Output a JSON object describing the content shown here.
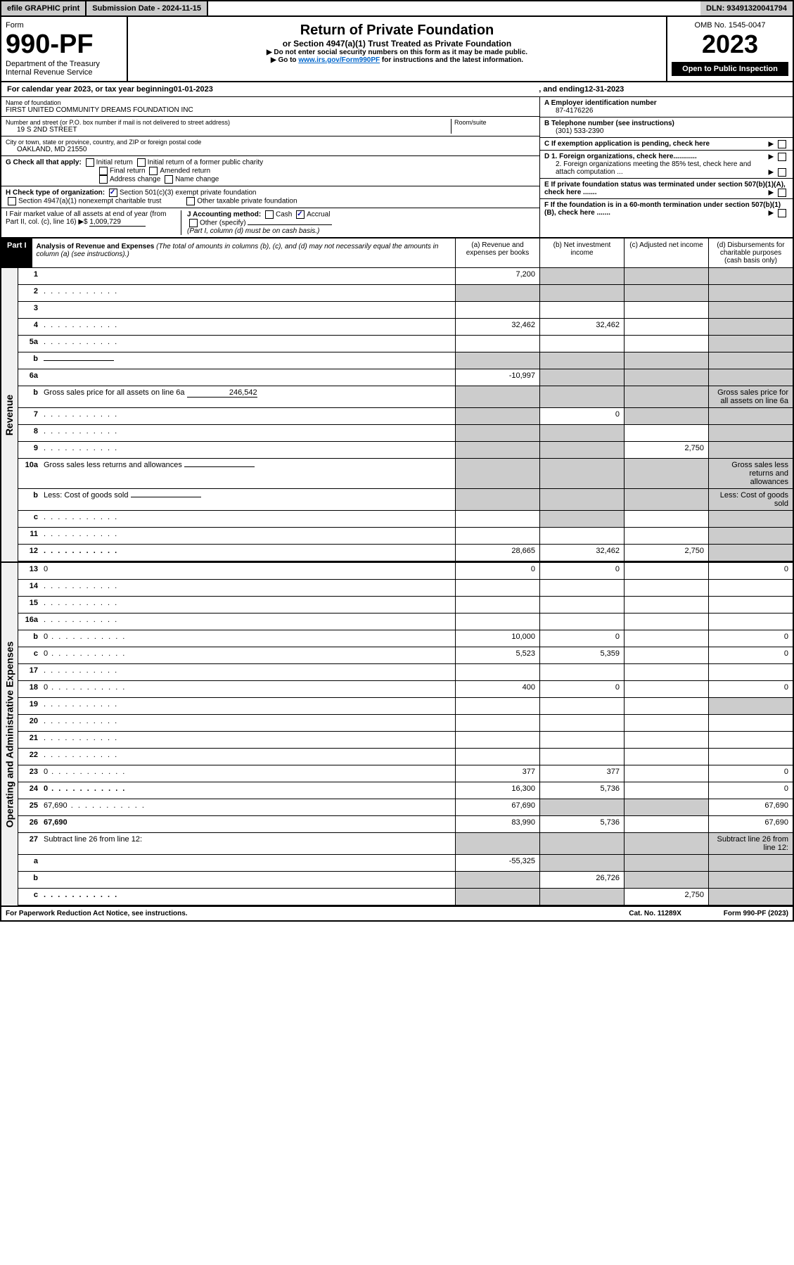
{
  "top": {
    "efile": "efile GRAPHIC print",
    "submission": "Submission Date - 2024-11-15",
    "dln": "DLN: 93491320041794"
  },
  "header": {
    "form_label": "Form",
    "form_num": "990-PF",
    "dept": "Department of the Treasury",
    "irs": "Internal Revenue Service",
    "omb": "OMB No. 1545-0047",
    "title": "Return of Private Foundation",
    "subtitle": "or Section 4947(a)(1) Trust Treated as Private Foundation",
    "note1": "▶ Do not enter social security numbers on this form as it may be made public.",
    "note2_pre": "▶ Go to ",
    "note2_link": "www.irs.gov/Form990PF",
    "note2_post": " for instructions and the latest information.",
    "year": "2023",
    "open": "Open to Public Inspection"
  },
  "calendar": {
    "text_pre": "For calendar year 2023, or tax year beginning ",
    "begin": "01-01-2023",
    "mid": ", and ending ",
    "end": "12-31-2023"
  },
  "foundation": {
    "name_label": "Name of foundation",
    "name": "FIRST UNITED COMMUNITY DREAMS FOUNDATION INC",
    "street_label": "Number and street (or P.O. box number if mail is not delivered to street address)",
    "street": "19 S 2ND STREET",
    "room_label": "Room/suite",
    "city_label": "City or town, state or province, country, and ZIP or foreign postal code",
    "city": "OAKLAND, MD  21550",
    "ein_label": "A Employer identification number",
    "ein": "87-4176226",
    "phone_label": "B Telephone number (see instructions)",
    "phone": "(301) 533-2390",
    "c_label": "C If exemption application is pending, check here",
    "d1": "D 1. Foreign organizations, check here............",
    "d2": "2. Foreign organizations meeting the 85% test, check here and attach computation ...",
    "e_label": "E If private foundation status was terminated under section 507(b)(1)(A), check here .......",
    "f_label": "F If the foundation is in a 60-month termination under section 507(b)(1)(B), check here .......",
    "g_label": "G Check all that apply:",
    "g_opts": [
      "Initial return",
      "Initial return of a former public charity",
      "Final return",
      "Amended return",
      "Address change",
      "Name change"
    ],
    "h_label": "H Check type of organization:",
    "h_501c3": "Section 501(c)(3) exempt private foundation",
    "h_4947": "Section 4947(a)(1) nonexempt charitable trust",
    "h_other": "Other taxable private foundation",
    "i_label": "I Fair market value of all assets at end of year (from Part II, col. (c), line 16) ▶$ ",
    "i_value": "1,009,729",
    "j_label": "J Accounting method:",
    "j_cash": "Cash",
    "j_accrual": "Accrual",
    "j_other": "Other (specify)",
    "j_note": "(Part I, column (d) must be on cash basis.)"
  },
  "part1": {
    "label": "Part I",
    "title": "Analysis of Revenue and Expenses",
    "title_note": "(The total of amounts in columns (b), (c), and (d) may not necessarily equal the amounts in column (a) (see instructions).)",
    "col_a": "(a) Revenue and expenses per books",
    "col_b": "(b) Net investment income",
    "col_c": "(c) Adjusted net income",
    "col_d": "(d) Disbursements for charitable purposes (cash basis only)"
  },
  "sections": {
    "revenue": "Revenue",
    "expenses": "Operating and Administrative Expenses"
  },
  "rows": [
    {
      "n": "1",
      "d": "",
      "a": "7,200",
      "b": "",
      "c": "",
      "sb": true,
      "sc": true,
      "sd": true
    },
    {
      "n": "2",
      "d": "",
      "a": "",
      "b": "",
      "c": "",
      "sa": true,
      "sb": true,
      "sc": true,
      "sd": true,
      "dots": true
    },
    {
      "n": "3",
      "d": "",
      "a": "",
      "b": "",
      "c": "",
      "sd": true
    },
    {
      "n": "4",
      "d": "",
      "a": "32,462",
      "b": "32,462",
      "c": "",
      "sd": true,
      "dots": true
    },
    {
      "n": "5a",
      "d": "",
      "a": "",
      "b": "",
      "c": "",
      "sd": true,
      "dots": true
    },
    {
      "n": "b",
      "d": "",
      "a": "",
      "b": "",
      "c": "",
      "sa": true,
      "sb": true,
      "sc": true,
      "sd": true,
      "inline": true
    },
    {
      "n": "6a",
      "d": "",
      "a": "-10,997",
      "b": "",
      "c": "",
      "sb": true,
      "sc": true,
      "sd": true
    },
    {
      "n": "b",
      "d": "Gross sales price for all assets on line 6a",
      "inline_val": "246,542",
      "sa": true,
      "sb": true,
      "sc": true,
      "sd": true
    },
    {
      "n": "7",
      "d": "",
      "a": "",
      "b": "0",
      "c": "",
      "sa": true,
      "sc": true,
      "sd": true,
      "dots": true
    },
    {
      "n": "8",
      "d": "",
      "a": "",
      "b": "",
      "c": "",
      "sa": true,
      "sb": true,
      "sd": true,
      "dots": true
    },
    {
      "n": "9",
      "d": "",
      "a": "",
      "b": "",
      "c": "2,750",
      "sa": true,
      "sb": true,
      "sd": true,
      "dots": true
    },
    {
      "n": "10a",
      "d": "Gross sales less returns and allowances",
      "sa": true,
      "sb": true,
      "sc": true,
      "sd": true,
      "inline": true
    },
    {
      "n": "b",
      "d": "Less: Cost of goods sold",
      "sa": true,
      "sb": true,
      "sc": true,
      "sd": true,
      "inline": true,
      "dots": true
    },
    {
      "n": "c",
      "d": "",
      "a": "",
      "b": "",
      "c": "",
      "sb": true,
      "sd": true,
      "dots": true
    },
    {
      "n": "11",
      "d": "",
      "a": "",
      "b": "",
      "c": "",
      "sd": true,
      "dots": true
    },
    {
      "n": "12",
      "d": "",
      "a": "28,665",
      "b": "32,462",
      "c": "2,750",
      "bold": true,
      "sd": true,
      "dots": true
    }
  ],
  "exp_rows": [
    {
      "n": "13",
      "d": "0",
      "a": "0",
      "b": "0",
      "c": ""
    },
    {
      "n": "14",
      "d": "",
      "a": "",
      "b": "",
      "c": "",
      "dots": true
    },
    {
      "n": "15",
      "d": "",
      "a": "",
      "b": "",
      "c": "",
      "dots": true
    },
    {
      "n": "16a",
      "d": "",
      "a": "",
      "b": "",
      "c": "",
      "dots": true
    },
    {
      "n": "b",
      "d": "0",
      "a": "10,000",
      "b": "0",
      "c": "",
      "dots": true
    },
    {
      "n": "c",
      "d": "0",
      "a": "5,523",
      "b": "5,359",
      "c": "",
      "dots": true
    },
    {
      "n": "17",
      "d": "",
      "a": "",
      "b": "",
      "c": "",
      "dots": true
    },
    {
      "n": "18",
      "d": "0",
      "a": "400",
      "b": "0",
      "c": "",
      "dots": true
    },
    {
      "n": "19",
      "d": "",
      "a": "",
      "b": "",
      "c": "",
      "sd": true,
      "dots": true
    },
    {
      "n": "20",
      "d": "",
      "a": "",
      "b": "",
      "c": "",
      "dots": true
    },
    {
      "n": "21",
      "d": "",
      "a": "",
      "b": "",
      "c": "",
      "dots": true
    },
    {
      "n": "22",
      "d": "",
      "a": "",
      "b": "",
      "c": "",
      "dots": true
    },
    {
      "n": "23",
      "d": "0",
      "a": "377",
      "b": "377",
      "c": "",
      "dots": true
    },
    {
      "n": "24",
      "d": "0",
      "a": "16,300",
      "b": "5,736",
      "c": "",
      "bold": true,
      "dots": true
    },
    {
      "n": "25",
      "d": "67,690",
      "a": "67,690",
      "b": "",
      "c": "",
      "sb": true,
      "sc": true,
      "dots": true
    },
    {
      "n": "26",
      "d": "67,690",
      "a": "83,990",
      "b": "5,736",
      "c": "",
      "bold": true
    },
    {
      "n": "27",
      "d": "Subtract line 26 from line 12:",
      "sa": true,
      "sb": true,
      "sc": true,
      "sd": true
    },
    {
      "n": "a",
      "d": "",
      "a": "-55,325",
      "b": "",
      "c": "",
      "bold": true,
      "sb": true,
      "sc": true,
      "sd": true
    },
    {
      "n": "b",
      "d": "",
      "a": "",
      "b": "26,726",
      "c": "",
      "bold": true,
      "sa": true,
      "sc": true,
      "sd": true
    },
    {
      "n": "c",
      "d": "",
      "a": "",
      "b": "",
      "c": "2,750",
      "bold": true,
      "sa": true,
      "sb": true,
      "sd": true,
      "dots": true
    }
  ],
  "footer": {
    "left": "For Paperwork Reduction Act Notice, see instructions.",
    "mid": "Cat. No. 11289X",
    "right": "Form 990-PF (2023)"
  }
}
